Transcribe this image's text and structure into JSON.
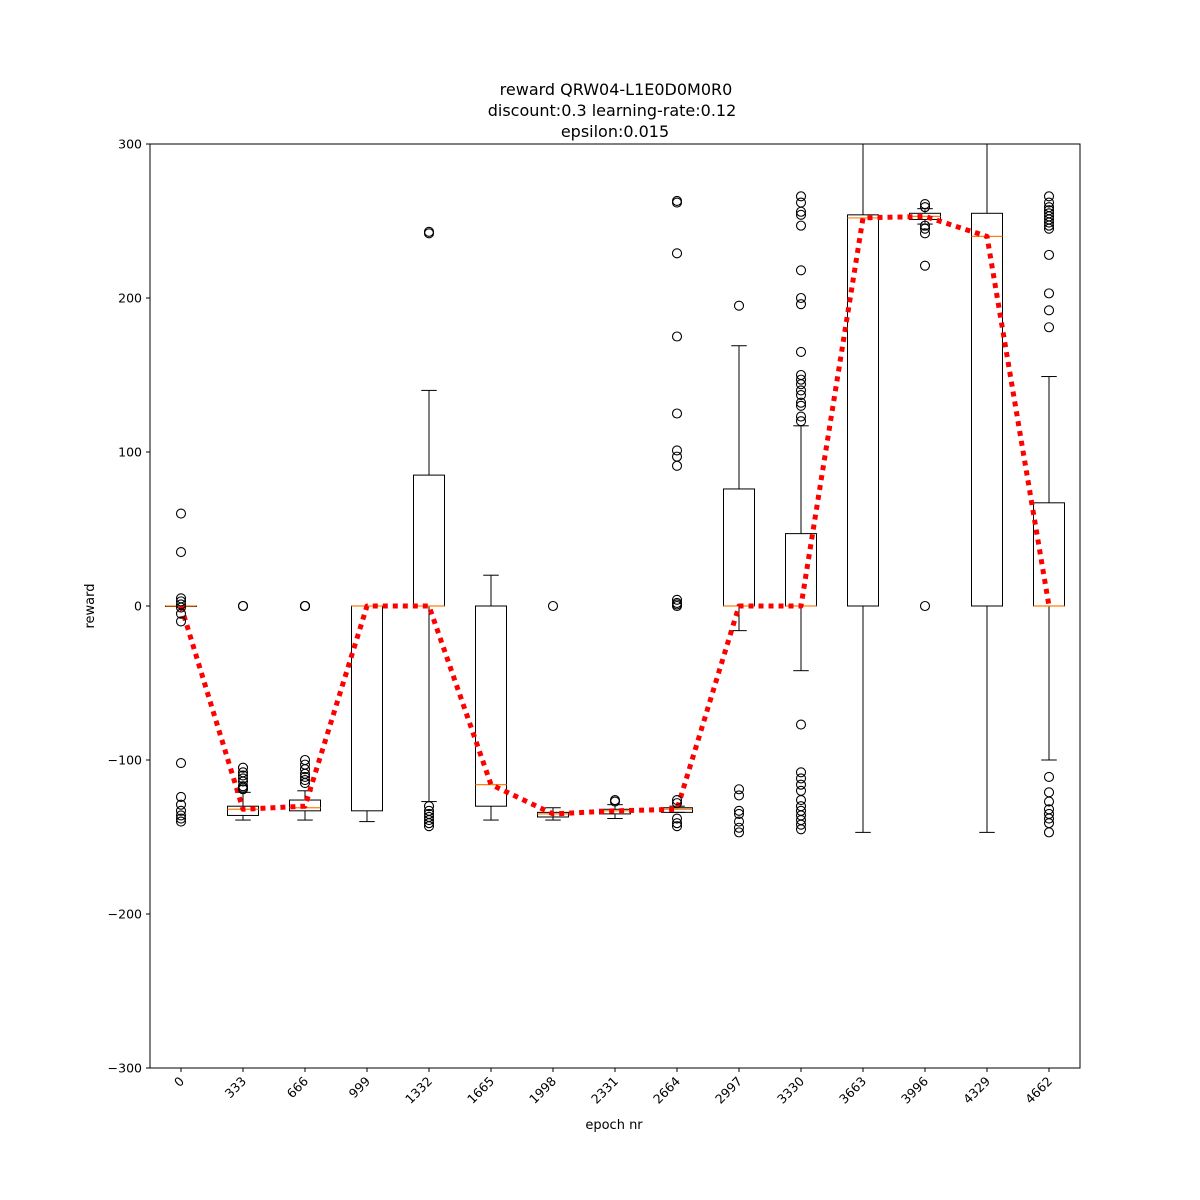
{
  "chart_data": {
    "type": "box",
    "title_lines": [
      "reward QRW04-L1E0D0M0R0",
      "discount:0.3 learning-rate:0.12",
      "epsilon:0.015"
    ],
    "xlabel": "epoch nr",
    "ylabel": "reward",
    "ylim": [
      -300,
      300
    ],
    "yticks": [
      -300,
      -200,
      -100,
      0,
      100,
      200,
      300
    ],
    "categories": [
      "0",
      "333",
      "666",
      "999",
      "1332",
      "1665",
      "1998",
      "2331",
      "2664",
      "2997",
      "3330",
      "3663",
      "3996",
      "4329",
      "4662"
    ],
    "boxes": [
      {
        "whisker_low": 0,
        "q1": 0,
        "median": 0,
        "q3": 0,
        "whisker_high": 0,
        "outliers": [
          60,
          35,
          5,
          3,
          1,
          -1,
          -5,
          -10,
          -102,
          -124,
          -129,
          -133,
          -136,
          -138,
          -140
        ]
      },
      {
        "whisker_low": -139,
        "q1": -136,
        "median": -132,
        "q3": -130,
        "whisker_high": -121,
        "outliers": [
          0,
          0,
          -105,
          -108,
          -110,
          -112,
          -114,
          -117,
          -118,
          -119
        ]
      },
      {
        "whisker_low": -139,
        "q1": -133,
        "median": -131,
        "q3": -126,
        "whisker_high": -120,
        "outliers": [
          0,
          0,
          0,
          -100,
          -103,
          -106,
          -109,
          -111,
          -113,
          -115
        ]
      },
      {
        "whisker_low": -140,
        "q1": -133,
        "median": 0,
        "q3": 0,
        "whisker_high": 0,
        "outliers": []
      },
      {
        "whisker_low": -127,
        "q1": 0,
        "median": 0,
        "q3": 85,
        "whisker_high": 140,
        "outliers": [
          243,
          242,
          -130,
          -133,
          -135,
          -137,
          -139,
          -141,
          -143
        ]
      },
      {
        "whisker_low": -139,
        "q1": -130,
        "median": -116,
        "q3": 0,
        "whisker_high": 20,
        "outliers": []
      },
      {
        "whisker_low": -139,
        "q1": -137,
        "median": -135,
        "q3": -134,
        "whisker_high": -131,
        "outliers": [
          0
        ]
      },
      {
        "whisker_low": -138,
        "q1": -135,
        "median": -133,
        "q3": -132,
        "whisker_high": -129,
        "outliers": [
          -126,
          -127
        ]
      },
      {
        "whisker_low": -134,
        "q1": -134,
        "median": -132,
        "q3": -131,
        "whisker_high": -130,
        "outliers": [
          263,
          262,
          229,
          175,
          125,
          101,
          97,
          91,
          4,
          2,
          1,
          0,
          -126,
          -128,
          -138,
          -141,
          -143
        ]
      },
      {
        "whisker_low": -16,
        "q1": 0,
        "median": 0,
        "q3": 76,
        "whisker_high": 169,
        "outliers": [
          195,
          -119,
          -123,
          -133,
          -135,
          -140,
          -144,
          -147
        ]
      },
      {
        "whisker_low": -42,
        "q1": 0,
        "median": 0,
        "q3": 47,
        "whisker_high": 117,
        "outliers": [
          266,
          262,
          256,
          254,
          247,
          218,
          200,
          196,
          165,
          150,
          147,
          144,
          140,
          137,
          132,
          130,
          123,
          120,
          -77,
          -108,
          -112,
          -116,
          -120,
          -126,
          -130,
          -133,
          -136,
          -139,
          -142,
          -145
        ]
      },
      {
        "whisker_low": -147,
        "q1": 0,
        "median": 252,
        "q3": 254,
        "whisker_high": 300,
        "outliers": []
      },
      {
        "whisker_low": 248,
        "q1": 251,
        "median": 253,
        "q3": 255,
        "whisker_high": 258,
        "outliers": [
          261,
          259,
          247,
          245,
          242,
          221,
          0
        ]
      },
      {
        "whisker_low": -147,
        "q1": 0,
        "median": 240,
        "q3": 255,
        "whisker_high": 300,
        "outliers": []
      },
      {
        "whisker_low": -100,
        "q1": 0,
        "median": 0,
        "q3": 67,
        "whisker_high": 149,
        "outliers": [
          266,
          262,
          259,
          257,
          255,
          253,
          251,
          249,
          247,
          245,
          228,
          203,
          192,
          181,
          -111,
          -121,
          -127,
          -132,
          -135,
          -138,
          -141,
          -147
        ]
      }
    ],
    "trend_line": {
      "values": [
        0,
        -132,
        -130,
        0,
        0,
        -116,
        -135,
        -133,
        -132,
        0,
        0,
        252,
        253,
        240,
        0
      ],
      "color": "#ff0000",
      "style": "dotted"
    },
    "colors": {
      "box_edge": "#000000",
      "median": "#ff7f0e",
      "outlier_edge": "#000000",
      "trend": "#ff0000"
    }
  }
}
